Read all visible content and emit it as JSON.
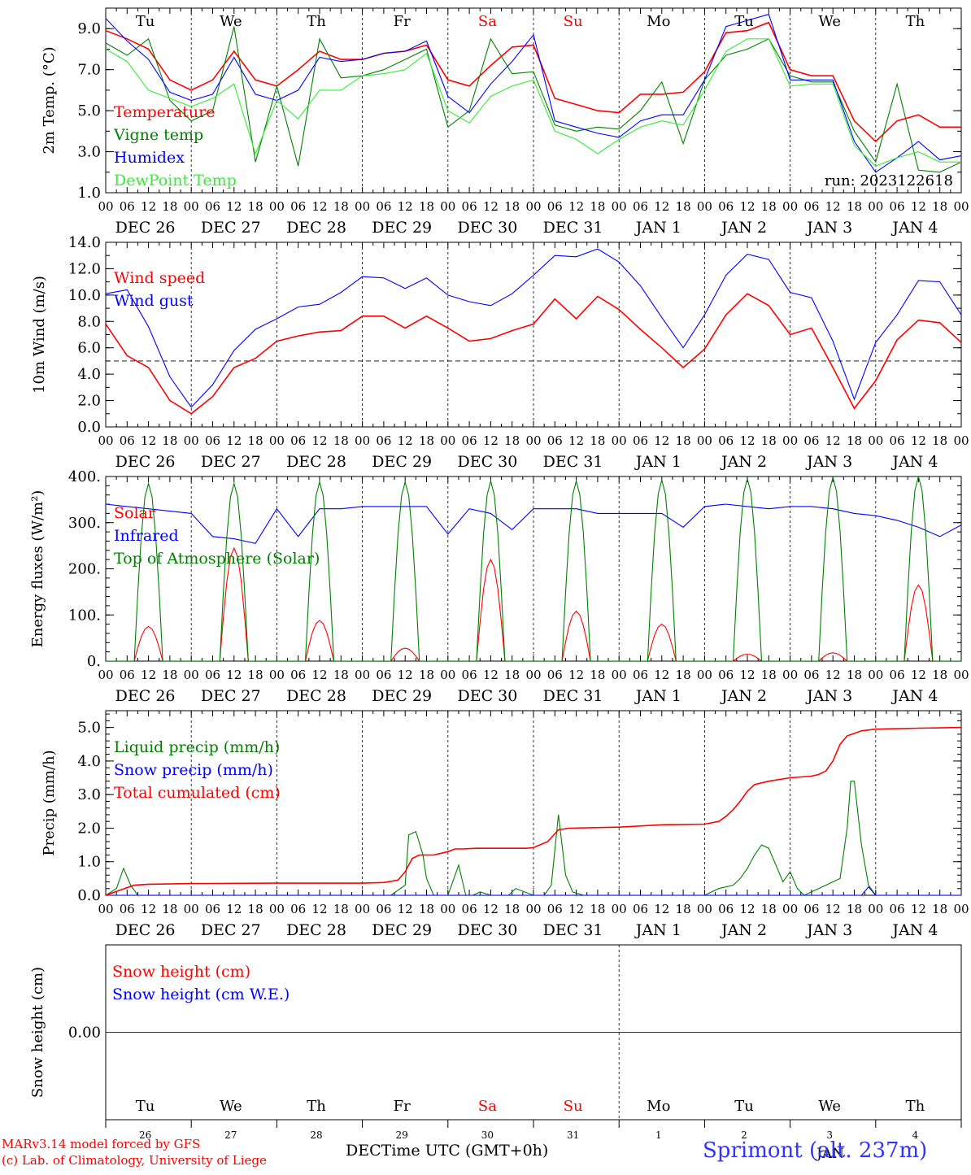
{
  "run_label": "run: 2023122618",
  "xaxis": {
    "title": "DECTime UTC (GMT+0h)",
    "hour_ticks": [
      "00",
      "06",
      "12",
      "18"
    ],
    "final_tick": "00",
    "date_labels": [
      "DEC 26",
      "DEC 27",
      "DEC 28",
      "DEC 29",
      "DEC 30",
      "DEC 31",
      "JAN  1",
      "JAN  2",
      "JAN  3",
      "JAN  4"
    ],
    "weekdays": [
      "Tu",
      "We",
      "Th",
      "Fr",
      "Sa",
      "Su",
      "Mo",
      "Tu",
      "We",
      "Th"
    ],
    "weekday_colors": [
      "#000000",
      "#000000",
      "#000000",
      "#000000",
      "#ff0000",
      "#ff0000",
      "#000000",
      "#000000",
      "#000000",
      "#000000"
    ],
    "day_numbers": [
      "26",
      "27",
      "28",
      "29",
      "30",
      "31",
      "1",
      "2",
      "3",
      "4"
    ],
    "month_marker": "JAN"
  },
  "footer": {
    "credit_line1": "MARv3.14 model forced by GFS",
    "credit_line2": "(c) Lab. of Climatology, University of Liege",
    "station": "Sprimont (alt. 237m)"
  },
  "colors": {
    "red": "#ff0000",
    "green": "#008000",
    "blue": "#0000ff",
    "light_green": "#33ee33",
    "purple": "#800080"
  },
  "chart_data": [
    {
      "type": "line",
      "ylabel": "2m Temp. (°C)",
      "ylim": [
        1.0,
        10.0
      ],
      "yticks": [
        "1.0",
        "3.0",
        "5.0",
        "7.0",
        "9.0"
      ],
      "x_unit": "hours since DEC 26 00 UTC",
      "series": [
        {
          "name": "Temperature",
          "color": "#ff0000",
          "x": [
            0,
            6,
            12,
            18,
            24,
            30,
            36,
            42,
            48,
            54,
            60,
            66,
            72,
            78,
            84,
            90,
            96,
            102,
            108,
            114,
            120,
            126,
            132,
            138,
            144,
            150,
            156,
            162,
            168,
            174,
            180,
            186,
            192,
            198,
            204,
            210,
            216,
            222,
            228,
            234,
            240
          ],
          "values": [
            8.9,
            8.5,
            8.0,
            6.5,
            6.0,
            6.5,
            7.9,
            6.5,
            6.2,
            7.0,
            7.9,
            7.5,
            7.5,
            7.8,
            7.9,
            8.2,
            6.5,
            6.2,
            7.2,
            8.1,
            8.2,
            5.6,
            5.3,
            5.0,
            4.9,
            5.8,
            5.8,
            5.9,
            6.9,
            8.8,
            8.9,
            9.3,
            7.0,
            6.7,
            6.7,
            4.5,
            3.5,
            4.5,
            4.8,
            4.2,
            4.2
          ]
        },
        {
          "name": "Vigne temp",
          "color": "#008000",
          "x": [
            0,
            6,
            12,
            18,
            24,
            30,
            36,
            42,
            48,
            54,
            60,
            66,
            72,
            78,
            84,
            90,
            96,
            102,
            108,
            114,
            120,
            126,
            132,
            138,
            144,
            150,
            156,
            162,
            168,
            174,
            180,
            186,
            192,
            198,
            204,
            210,
            216,
            222,
            228,
            234,
            240
          ],
          "values": [
            8.3,
            7.7,
            8.5,
            5.5,
            4.5,
            5.0,
            9.1,
            2.5,
            6.2,
            2.3,
            8.5,
            6.6,
            6.7,
            7.0,
            7.5,
            8.0,
            4.2,
            5.0,
            8.5,
            6.8,
            6.9,
            4.3,
            4.0,
            4.2,
            4.1,
            5.0,
            6.4,
            3.4,
            6.5,
            7.7,
            8.0,
            8.5,
            6.7,
            6.4,
            6.4,
            4.0,
            2.5,
            6.3,
            2.1,
            2.0,
            2.5
          ]
        },
        {
          "name": "Humidex",
          "color": "#0000ff",
          "x": [
            0,
            6,
            12,
            18,
            24,
            30,
            36,
            42,
            48,
            54,
            60,
            66,
            72,
            78,
            84,
            90,
            96,
            102,
            108,
            114,
            120,
            126,
            132,
            138,
            144,
            150,
            156,
            162,
            168,
            174,
            180,
            186,
            192,
            198,
            204,
            210,
            216,
            222,
            228,
            234,
            240
          ],
          "values": [
            9.5,
            8.4,
            7.5,
            5.9,
            5.5,
            5.8,
            7.6,
            5.8,
            5.5,
            6.0,
            7.6,
            7.4,
            7.5,
            7.8,
            7.9,
            8.4,
            5.7,
            4.9,
            6.3,
            7.4,
            8.7,
            4.5,
            4.2,
            3.9,
            3.7,
            4.5,
            4.8,
            4.8,
            6.5,
            9.1,
            9.4,
            9.7,
            6.5,
            6.5,
            6.5,
            3.5,
            2.0,
            2.7,
            3.5,
            2.6,
            2.8
          ]
        },
        {
          "name": "DewPoint Temp",
          "color": "#33ee33",
          "x": [
            0,
            6,
            12,
            18,
            24,
            30,
            36,
            42,
            48,
            54,
            60,
            66,
            72,
            78,
            84,
            90,
            96,
            102,
            108,
            114,
            120,
            126,
            132,
            138,
            144,
            150,
            156,
            162,
            168,
            174,
            180,
            186,
            192,
            198,
            204,
            210,
            216,
            222,
            228,
            234,
            240
          ],
          "values": [
            8.0,
            7.4,
            6.0,
            5.6,
            5.2,
            5.6,
            6.3,
            2.9,
            5.5,
            4.6,
            6.0,
            6.0,
            6.7,
            6.8,
            7.0,
            7.8,
            5.0,
            4.4,
            5.7,
            6.2,
            6.5,
            4.0,
            3.6,
            2.9,
            3.6,
            4.2,
            4.5,
            4.3,
            6.0,
            7.9,
            8.5,
            8.5,
            6.2,
            6.3,
            6.3,
            3.3,
            2.3,
            2.7,
            3.0,
            2.5,
            2.5
          ]
        }
      ]
    },
    {
      "type": "line",
      "ylabel": "10m Wind (m/s)",
      "ylim": [
        0.0,
        14.0
      ],
      "yticks": [
        "0.0",
        "2.0",
        "4.0",
        "6.0",
        "8.0",
        "10.0",
        "12.0",
        "14.0"
      ],
      "reference_line": 5.0,
      "x_unit": "hours since DEC 26 00 UTC",
      "series": [
        {
          "name": "Wind speed",
          "color": "#ff0000",
          "x": [
            0,
            6,
            12,
            18,
            24,
            30,
            36,
            42,
            48,
            54,
            60,
            66,
            72,
            78,
            84,
            90,
            96,
            102,
            108,
            114,
            120,
            126,
            132,
            138,
            144,
            150,
            156,
            162,
            168,
            174,
            180,
            186,
            192,
            198,
            204,
            210,
            216,
            222,
            228,
            234,
            240
          ],
          "values": [
            7.8,
            5.4,
            4.5,
            2.0,
            1.0,
            2.3,
            4.5,
            5.2,
            6.5,
            6.9,
            7.2,
            7.3,
            8.4,
            8.4,
            7.5,
            8.4,
            7.5,
            6.5,
            6.7,
            7.3,
            7.8,
            9.7,
            8.2,
            9.9,
            8.9,
            7.4,
            6.0,
            4.5,
            5.9,
            8.5,
            10.1,
            9.2,
            7.0,
            7.5,
            4.5,
            1.4,
            3.5,
            6.6,
            8.1,
            7.9,
            6.4
          ]
        },
        {
          "name": "Wind gust",
          "color": "#0000ff",
          "x": [
            0,
            6,
            12,
            18,
            24,
            30,
            36,
            42,
            48,
            54,
            60,
            66,
            72,
            78,
            84,
            90,
            96,
            102,
            108,
            114,
            120,
            126,
            132,
            138,
            144,
            150,
            156,
            162,
            168,
            174,
            180,
            186,
            192,
            198,
            204,
            210,
            216,
            222,
            228,
            234,
            240
          ],
          "values": [
            10.1,
            10.4,
            7.6,
            3.8,
            1.5,
            3.2,
            5.8,
            7.4,
            8.2,
            9.1,
            9.3,
            10.2,
            11.4,
            11.3,
            10.5,
            11.3,
            10.0,
            9.5,
            9.2,
            10.1,
            11.5,
            13.0,
            12.9,
            13.5,
            12.5,
            10.7,
            8.3,
            6.0,
            8.5,
            11.5,
            13.1,
            12.7,
            10.2,
            9.8,
            6.5,
            2.1,
            6.4,
            8.5,
            11.1,
            11.0,
            8.5
          ]
        }
      ]
    },
    {
      "type": "line",
      "ylabel": "Energy fluxes (W/m²)",
      "ylim": [
        0,
        400
      ],
      "yticks": [
        "0.",
        "100.",
        "200.",
        "300.",
        "400."
      ],
      "x_unit": "hours since DEC 26 00 UTC",
      "series": [
        {
          "name": "Solar",
          "color": "#ff0000",
          "day_peaks": [
            75,
            245,
            88,
            28,
            220,
            108,
            80,
            15,
            18,
            165
          ]
        },
        {
          "name": "Infrared",
          "color": "#0000ff",
          "x": [
            0,
            6,
            12,
            18,
            24,
            30,
            36,
            42,
            48,
            54,
            60,
            66,
            72,
            78,
            84,
            90,
            96,
            102,
            108,
            114,
            120,
            126,
            132,
            138,
            144,
            150,
            156,
            162,
            168,
            174,
            180,
            186,
            192,
            198,
            204,
            210,
            216,
            222,
            228,
            234,
            240
          ],
          "values": [
            340,
            335,
            330,
            325,
            320,
            270,
            265,
            255,
            330,
            270,
            330,
            330,
            335,
            335,
            335,
            335,
            275,
            330,
            320,
            285,
            330,
            330,
            330,
            320,
            320,
            320,
            320,
            290,
            335,
            340,
            335,
            330,
            335,
            335,
            330,
            320,
            315,
            305,
            290,
            270,
            295
          ]
        },
        {
          "name": "Top of Atmosphere (Solar)",
          "color": "#008000",
          "day_peaks": [
            385,
            385,
            388,
            388,
            390,
            390,
            392,
            395,
            398,
            400
          ]
        }
      ],
      "daylight_hours": [
        8,
        16
      ]
    },
    {
      "type": "line",
      "ylabel": "Precip (mm/h)",
      "ylim": [
        0.0,
        5.5
      ],
      "yticks": [
        "0.0",
        "1.0",
        "2.0",
        "3.0",
        "4.0",
        "5.0"
      ],
      "x_unit": "hours since DEC 26 00 UTC",
      "series": [
        {
          "name": "Liquid precip (mm/h)",
          "color": "#008000",
          "x": [
            0,
            3,
            5,
            7,
            9,
            12,
            24,
            48,
            72,
            80,
            84,
            85,
            87,
            89,
            90,
            92,
            96,
            99,
            101,
            103,
            105,
            108,
            113,
            115,
            120,
            123,
            125,
            127,
            129,
            131,
            134,
            144,
            168,
            172,
            176,
            178,
            180,
            182,
            184,
            186,
            188,
            190,
            192,
            194,
            196,
            206,
            208,
            209,
            210,
            212,
            214,
            216,
            240
          ],
          "values": [
            0.0,
            0.2,
            0.8,
            0.3,
            0.0,
            0.0,
            0.0,
            0.0,
            0.0,
            0.0,
            0.3,
            1.8,
            1.9,
            1.2,
            0.5,
            0.0,
            0.0,
            0.9,
            0.0,
            0.0,
            0.1,
            0.0,
            0.0,
            0.2,
            0.0,
            0.0,
            0.3,
            2.4,
            0.6,
            0.1,
            0.0,
            0.0,
            0.0,
            0.2,
            0.3,
            0.5,
            0.8,
            1.2,
            1.5,
            1.4,
            0.9,
            0.4,
            0.7,
            0.2,
            0.0,
            0.5,
            2.0,
            3.4,
            3.4,
            1.5,
            0.3,
            0.0,
            0.0
          ]
        },
        {
          "name": "Snow precip (mm/h)",
          "color": "#0000ff",
          "x": [
            0,
            212,
            214,
            216,
            240
          ],
          "values": [
            0.0,
            0.0,
            0.25,
            0.0,
            0.0
          ]
        },
        {
          "name": "Total cumulated (cm)",
          "color": "#ff0000",
          "x": [
            0,
            4,
            8,
            12,
            24,
            48,
            72,
            78,
            82,
            84,
            86,
            88,
            92,
            96,
            98,
            100,
            104,
            110,
            118,
            120,
            124,
            127,
            130,
            144,
            156,
            168,
            172,
            174,
            176,
            178,
            180,
            182,
            186,
            192,
            198,
            200,
            202,
            204,
            206,
            208,
            212,
            216,
            228,
            240
          ],
          "values": [
            0.0,
            0.15,
            0.3,
            0.33,
            0.35,
            0.36,
            0.36,
            0.38,
            0.45,
            0.7,
            1.1,
            1.2,
            1.2,
            1.3,
            1.38,
            1.38,
            1.4,
            1.4,
            1.4,
            1.42,
            1.6,
            1.95,
            2.0,
            2.03,
            2.1,
            2.12,
            2.2,
            2.35,
            2.55,
            2.8,
            3.1,
            3.3,
            3.4,
            3.5,
            3.55,
            3.6,
            3.7,
            4.0,
            4.5,
            4.75,
            4.9,
            4.95,
            4.98,
            5.0
          ]
        }
      ]
    },
    {
      "type": "line",
      "ylabel": "Snow height (cm)",
      "yticks": [
        "0.00"
      ],
      "x_unit": "hours since DEC 26 00 UTC",
      "series": [
        {
          "name": "Snow height (cm)",
          "color": "#ff0000",
          "x": [
            0,
            240
          ],
          "values": [
            0,
            0
          ]
        },
        {
          "name": "Snow height (cm W.E.)",
          "color": "#0000ff",
          "x": [
            0,
            240
          ],
          "values": [
            0,
            0
          ]
        }
      ]
    }
  ]
}
